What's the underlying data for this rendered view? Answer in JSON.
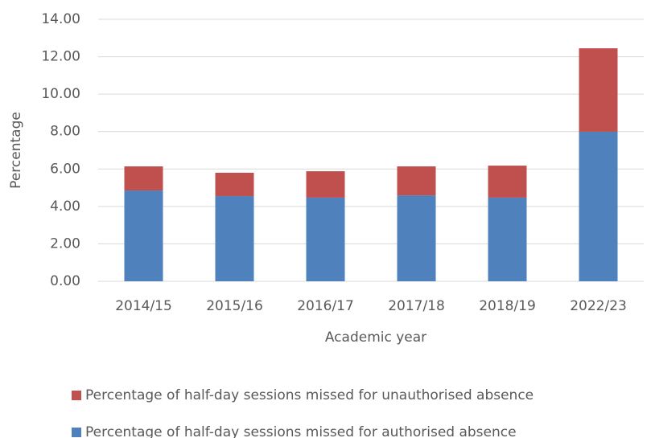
{
  "chart_data": {
    "type": "stacked_bar",
    "x_label": "Academic year",
    "y_label": "Percentage",
    "categories": [
      "2014/15",
      "2015/16",
      "2016/17",
      "2017/18",
      "2018/19",
      "2022/23"
    ],
    "series": [
      {
        "name": "Percentage of half-day sessions missed for authorised absence",
        "color": "#4f81bd",
        "values": [
          4.85,
          4.55,
          4.47,
          4.59,
          4.47,
          7.99
        ]
      },
      {
        "name": "Percentage of half-day sessions missed for unauthorised absence",
        "color": "#c0504d",
        "values": [
          1.29,
          1.25,
          1.41,
          1.55,
          1.71,
          4.46
        ]
      }
    ],
    "ylim": [
      0,
      14
    ],
    "yticks": [
      {
        "value": 0,
        "label": "0.00"
      },
      {
        "value": 2,
        "label": "2.00"
      },
      {
        "value": 4,
        "label": "4.00"
      },
      {
        "value": 6,
        "label": "6.00"
      },
      {
        "value": 8,
        "label": "8.00"
      },
      {
        "value": 10,
        "label": "10.00"
      },
      {
        "value": 12,
        "label": "12.00"
      },
      {
        "value": 14,
        "label": "14.00"
      }
    ],
    "grid": true
  }
}
